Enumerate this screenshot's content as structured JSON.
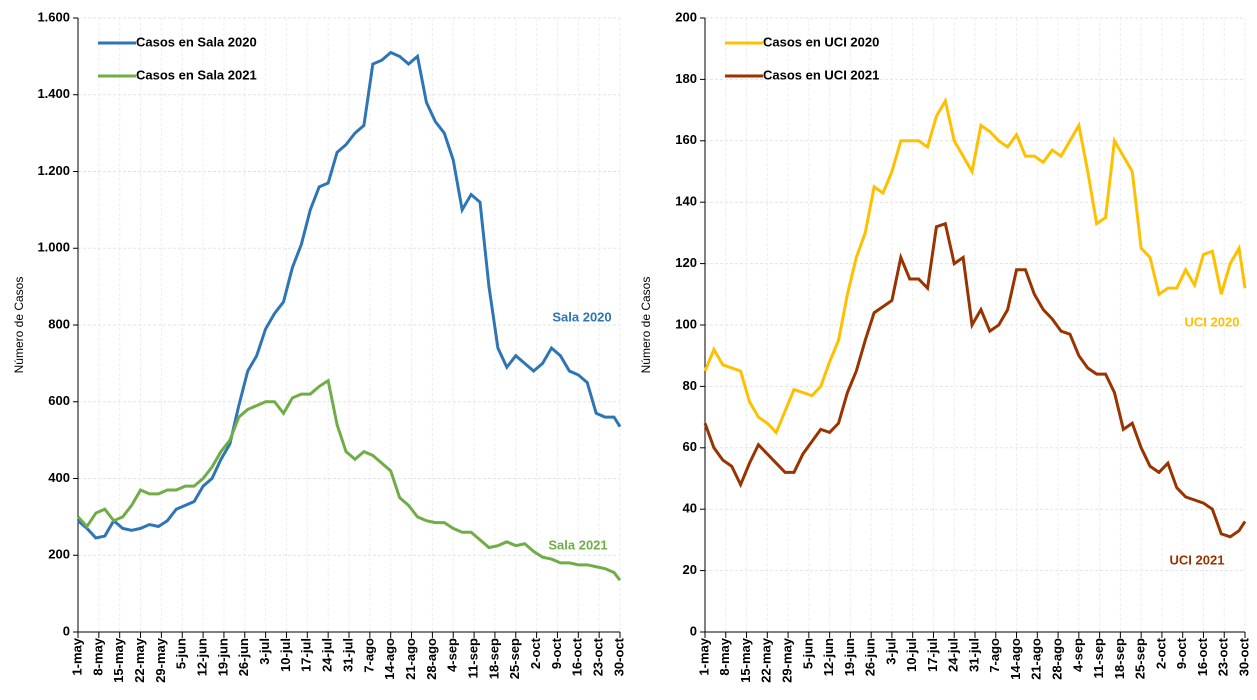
{
  "chart_data": [
    {
      "type": "line",
      "ylabel": "Número de Casos",
      "xlim": [
        0,
        182
      ],
      "ylim": [
        0,
        1600
      ],
      "yticks": [
        0,
        200,
        400,
        600,
        800,
        {
          "value": 1000,
          "label": "1.000"
        },
        {
          "value": 1200,
          "label": "1.200"
        },
        {
          "value": 1400,
          "label": "1.400"
        },
        {
          "value": 1600,
          "label": "1.600"
        }
      ],
      "xticks": [
        {
          "value": 0,
          "label": "1-may"
        },
        {
          "value": 7,
          "label": "8-may"
        },
        {
          "value": 14,
          "label": "15-may"
        },
        {
          "value": 21,
          "label": "22-may"
        },
        {
          "value": 28,
          "label": "29-may"
        },
        {
          "value": 35,
          "label": "5-jun"
        },
        {
          "value": 42,
          "label": "12-jun"
        },
        {
          "value": 49,
          "label": "19-jun"
        },
        {
          "value": 56,
          "label": "26-jun"
        },
        {
          "value": 63,
          "label": "3-jul"
        },
        {
          "value": 70,
          "label": "10-jul"
        },
        {
          "value": 77,
          "label": "17-jul"
        },
        {
          "value": 84,
          "label": "24-jul"
        },
        {
          "value": 91,
          "label": "31-jul"
        },
        {
          "value": 98,
          "label": "7-ago"
        },
        {
          "value": 105,
          "label": "14-ago"
        },
        {
          "value": 112,
          "label": "21-ago"
        },
        {
          "value": 119,
          "label": "28-ago"
        },
        {
          "value": 126,
          "label": "4-sep"
        },
        {
          "value": 133,
          "label": "11-sep"
        },
        {
          "value": 140,
          "label": "18-sep"
        },
        {
          "value": 147,
          "label": "25-sep"
        },
        {
          "value": 154,
          "label": "2-oct"
        },
        {
          "value": 161,
          "label": "9-oct"
        },
        {
          "value": 168,
          "label": "16-oct"
        },
        {
          "value": 175,
          "label": "23-oct"
        },
        {
          "value": 182,
          "label": "30-oct"
        }
      ],
      "grid": true,
      "legend": "upper left",
      "x": [
        0,
        3,
        6,
        9,
        12,
        15,
        18,
        21,
        24,
        27,
        30,
        33,
        36,
        39,
        42,
        45,
        48,
        51,
        54,
        57,
        60,
        63,
        66,
        69,
        72,
        75,
        78,
        81,
        84,
        87,
        90,
        93,
        96,
        99,
        102,
        105,
        108,
        111,
        114,
        117,
        120,
        123,
        126,
        129,
        132,
        135,
        138,
        141,
        144,
        147,
        150,
        153,
        156,
        159,
        162,
        165,
        168,
        171,
        174,
        177,
        180,
        182
      ],
      "series": [
        {
          "name": "Casos en Sala 2020",
          "color": "#2e75b6",
          "values": [
            290,
            270,
            245,
            250,
            290,
            270,
            265,
            270,
            280,
            275,
            290,
            320,
            330,
            340,
            380,
            400,
            450,
            490,
            590,
            680,
            720,
            790,
            830,
            860,
            950,
            1010,
            1100,
            1160,
            1170,
            1250,
            1270,
            1300,
            1320,
            1480,
            1490,
            1510,
            1500,
            1480,
            1500,
            1380,
            1330,
            1300,
            1230,
            1100,
            1140,
            1120,
            900,
            740,
            690,
            720,
            700,
            680,
            700,
            740,
            720,
            680,
            670,
            650,
            570,
            560,
            560,
            535
          ]
        },
        {
          "name": "Casos en Sala 2021",
          "color": "#70ad47",
          "values": [
            300,
            275,
            310,
            320,
            290,
            300,
            330,
            370,
            360,
            360,
            370,
            370,
            380,
            380,
            400,
            430,
            470,
            500,
            560,
            580,
            590,
            600,
            600,
            570,
            610,
            620,
            620,
            640,
            655,
            540,
            470,
            450,
            470,
            460,
            440,
            420,
            350,
            330,
            300,
            290,
            285,
            285,
            270,
            260,
            260,
            240,
            220,
            225,
            235,
            225,
            230,
            210,
            195,
            190,
            180,
            180,
            175,
            175,
            170,
            165,
            155,
            135
          ]
        }
      ],
      "annotations": [
        "Sala 2020",
        "Sala 2021"
      ]
    },
    {
      "type": "line",
      "ylabel": "Número de Casos",
      "xlim": [
        0,
        182
      ],
      "ylim": [
        0,
        200
      ],
      "yticks": [
        0,
        20,
        40,
        60,
        80,
        100,
        120,
        140,
        160,
        180,
        200
      ],
      "xticks": [
        {
          "value": 0,
          "label": "1-may"
        },
        {
          "value": 7,
          "label": "8-may"
        },
        {
          "value": 14,
          "label": "15-may"
        },
        {
          "value": 21,
          "label": "22-may"
        },
        {
          "value": 28,
          "label": "29-may"
        },
        {
          "value": 35,
          "label": "5-jun"
        },
        {
          "value": 42,
          "label": "12-jun"
        },
        {
          "value": 49,
          "label": "19-jun"
        },
        {
          "value": 56,
          "label": "26-jun"
        },
        {
          "value": 63,
          "label": "3-jul"
        },
        {
          "value": 70,
          "label": "10-jul"
        },
        {
          "value": 77,
          "label": "17-jul"
        },
        {
          "value": 84,
          "label": "24-jul"
        },
        {
          "value": 91,
          "label": "31-jul"
        },
        {
          "value": 98,
          "label": "7-ago"
        },
        {
          "value": 105,
          "label": "14-ago"
        },
        {
          "value": 112,
          "label": "21-ago"
        },
        {
          "value": 119,
          "label": "28-ago"
        },
        {
          "value": 126,
          "label": "4-sep"
        },
        {
          "value": 133,
          "label": "11-sep"
        },
        {
          "value": 140,
          "label": "18-sep"
        },
        {
          "value": 147,
          "label": "25-sep"
        },
        {
          "value": 154,
          "label": "2-oct"
        },
        {
          "value": 161,
          "label": "9-oct"
        },
        {
          "value": 168,
          "label": "16-oct"
        },
        {
          "value": 175,
          "label": "23-oct"
        },
        {
          "value": 182,
          "label": "30-oct"
        }
      ],
      "grid": true,
      "legend": "upper left",
      "x": [
        0,
        3,
        6,
        9,
        12,
        15,
        18,
        21,
        24,
        27,
        30,
        33,
        36,
        39,
        42,
        45,
        48,
        51,
        54,
        57,
        60,
        63,
        66,
        69,
        72,
        75,
        78,
        81,
        84,
        87,
        90,
        93,
        96,
        99,
        102,
        105,
        108,
        111,
        114,
        117,
        120,
        123,
        126,
        129,
        132,
        135,
        138,
        141,
        144,
        147,
        150,
        153,
        156,
        159,
        162,
        165,
        168,
        171,
        174,
        177,
        180,
        182
      ],
      "series": [
        {
          "name": "Casos en UCI 2020",
          "color": "#ffc000",
          "values": [
            85,
            92,
            87,
            86,
            85,
            75,
            70,
            68,
            65,
            72,
            79,
            78,
            77,
            80,
            88,
            95,
            110,
            122,
            130,
            145,
            143,
            150,
            160,
            160,
            160,
            158,
            168,
            173,
            160,
            155,
            150,
            165,
            163,
            160,
            158,
            162,
            155,
            155,
            153,
            157,
            155,
            160,
            165,
            150,
            133,
            135,
            160,
            155,
            150,
            125,
            122,
            110,
            112,
            112,
            118,
            113,
            123,
            124,
            110,
            120,
            125,
            112
          ]
        },
        {
          "name": "Casos en UCI 2021",
          "color": "#993300",
          "values": [
            68,
            60,
            56,
            54,
            48,
            55,
            61,
            58,
            55,
            52,
            52,
            58,
            62,
            66,
            65,
            68,
            78,
            85,
            95,
            104,
            106,
            108,
            122,
            115,
            115,
            112,
            132,
            133,
            120,
            122,
            100,
            105,
            98,
            100,
            105,
            118,
            118,
            110,
            105,
            102,
            98,
            97,
            90,
            86,
            84,
            84,
            78,
            66,
            68,
            60,
            54,
            52,
            55,
            47,
            44,
            43,
            42,
            40,
            32,
            31,
            33,
            36
          ]
        }
      ],
      "annotations": [
        "UCI 2020",
        "UCI 2021"
      ]
    }
  ]
}
